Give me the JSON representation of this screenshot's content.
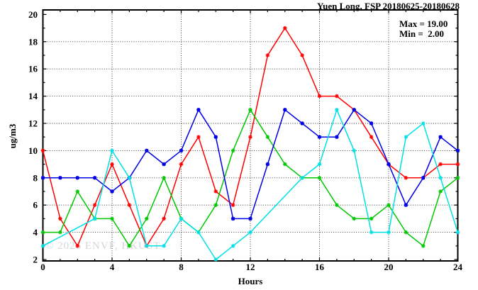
{
  "title": "Yuen Long, FSP 20180625-20180628",
  "stats": {
    "max_label": "Max = 19.00",
    "min_label": "Min =  2.00"
  },
  "watermark": "© 2026 ENVF, HKUST",
  "chart_data": {
    "type": "line",
    "title": "Yuen Long, FSP 20180625-20180628",
    "xlabel": "Hours",
    "ylabel": "ug/m3",
    "xlim": [
      0,
      24
    ],
    "ylim": [
      2,
      20
    ],
    "x_major_ticks": [
      0,
      4,
      8,
      12,
      16,
      20,
      24
    ],
    "y_major_ticks": [
      2,
      4,
      6,
      8,
      10,
      12,
      14,
      16,
      18,
      20
    ],
    "x_minor_step": 1,
    "y_minor_step": 1,
    "grid": {
      "x_lines": [
        4,
        8,
        12,
        16,
        20
      ],
      "y_lines": [
        4,
        6,
        8,
        10,
        12,
        14,
        16,
        18
      ]
    },
    "legend_position": "none",
    "annotations": {
      "max": 19.0,
      "min": 2.0
    },
    "x": [
      0,
      1,
      2,
      3,
      4,
      5,
      6,
      7,
      8,
      9,
      10,
      11,
      12,
      13,
      14,
      15,
      16,
      17,
      18,
      19,
      20,
      21,
      22,
      23,
      24
    ],
    "series": [
      {
        "name": "red",
        "color": "#ff0000",
        "marker": "star",
        "values": [
          10,
          5,
          3,
          6,
          9,
          6,
          3,
          5,
          9,
          11,
          7,
          6,
          11,
          17,
          19,
          17,
          14,
          14,
          13,
          11,
          9,
          8,
          8,
          9,
          9
        ]
      },
      {
        "name": "green",
        "color": "#00c800",
        "marker": "star",
        "values": [
          4,
          4,
          7,
          5,
          5,
          3,
          5,
          8,
          5,
          4,
          6,
          10,
          13,
          11,
          9,
          8,
          8,
          6,
          5,
          5,
          6,
          4,
          3,
          7,
          8
        ]
      },
      {
        "name": "blue",
        "color": "#0000e6",
        "marker": "square",
        "values": [
          8,
          8,
          8,
          8,
          7,
          8,
          10,
          9,
          10,
          13,
          11,
          5,
          5,
          9,
          13,
          12,
          11,
          11,
          13,
          12,
          9,
          6,
          8,
          11,
          10
        ]
      },
      {
        "name": "cyan",
        "color": "#00e0e6",
        "marker": "star",
        "values": [
          3,
          null,
          null,
          5,
          10,
          8,
          3,
          3,
          5,
          4,
          2,
          3,
          4,
          null,
          null,
          8,
          9,
          13,
          10,
          4,
          4,
          11,
          12,
          8,
          4
        ]
      }
    ]
  }
}
